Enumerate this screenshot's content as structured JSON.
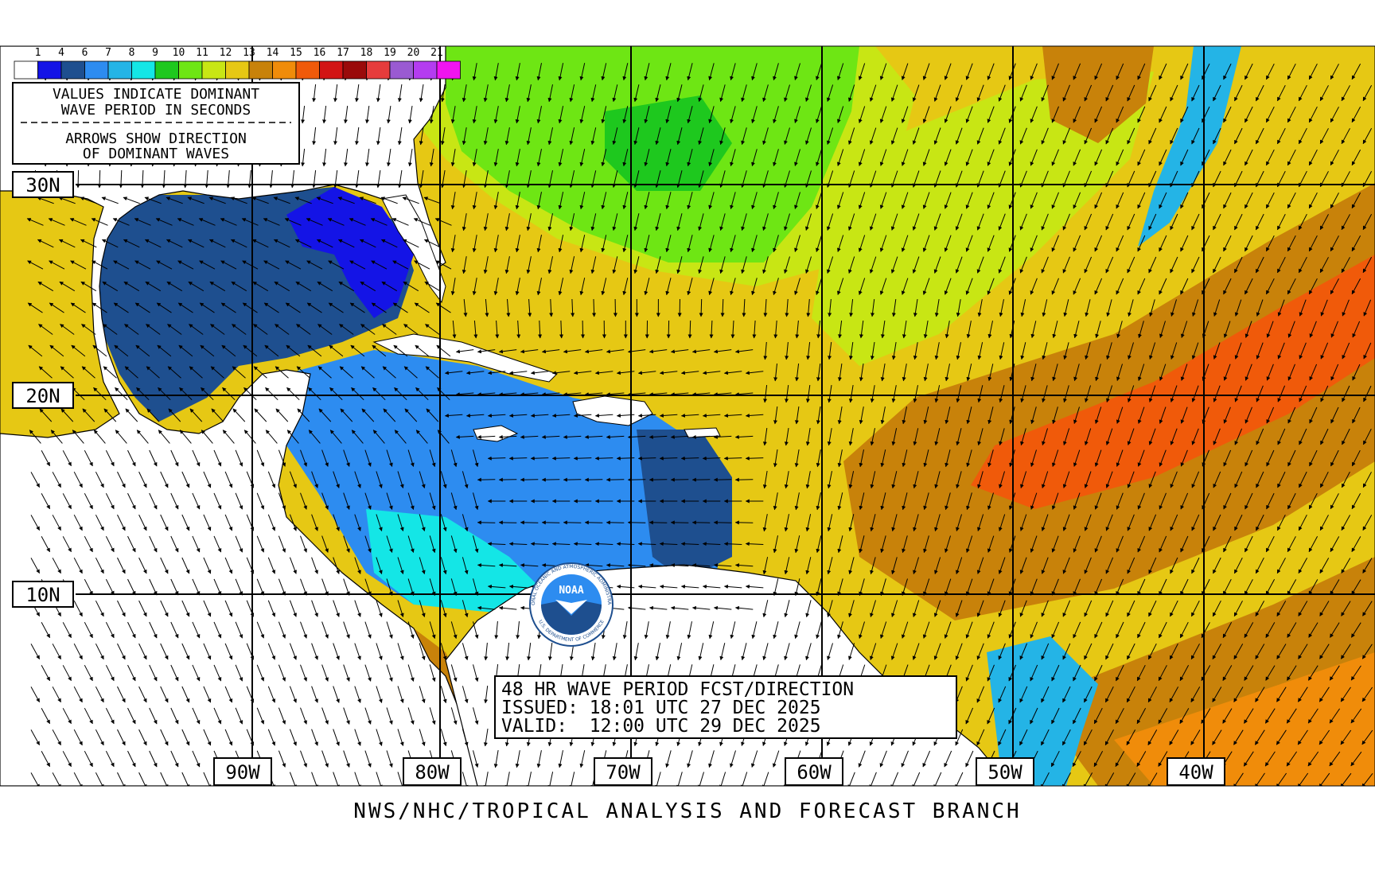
{
  "legend": {
    "values": [
      "1",
      "4",
      "6",
      "7",
      "8",
      "9",
      "10",
      "11",
      "12",
      "13",
      "14",
      "15",
      "16",
      "17",
      "18",
      "19",
      "20",
      "21"
    ],
    "colors": [
      "#ffffff",
      "#1414e6",
      "#1e4f8f",
      "#2d8cf0",
      "#24b4e6",
      "#14e6e6",
      "#1ec81e",
      "#6ee614",
      "#c8e614",
      "#e6c814",
      "#c8820a",
      "#f08c0a",
      "#f05a0a",
      "#d21414",
      "#9a0a0a",
      "#e63c3c",
      "#9a5ad2",
      "#b43cf0",
      "#f014f0"
    ],
    "note_line1": "VALUES INDICATE DOMINANT",
    "note_line2": "WAVE PERIOD IN SECONDS",
    "note_line3": "ARROWS SHOW DIRECTION",
    "note_line4": "OF DOMINANT WAVES"
  },
  "grid": {
    "lat_labels": [
      "30N",
      "20N",
      "10N"
    ],
    "lon_labels": [
      "90W",
      "80W",
      "70W",
      "60W",
      "50W",
      "40W"
    ]
  },
  "info": {
    "title": "48 HR WAVE PERIOD FCST/DIRECTION",
    "issued": "ISSUED: 18:01 UTC 27 DEC 2025",
    "valid": "VALID:  12:00 UTC 29 DEC 2025"
  },
  "logo": {
    "text": "NOAA",
    "ring_top": "NATIONAL OCEANIC AND ATMOSPHERIC ADMINISTRATION",
    "ring_bottom": "U.S. DEPARTMENT OF COMMERCE"
  },
  "footer": "NWS/NHC/TROPICAL ANALYSIS AND FORECAST BRANCH",
  "map_colors": {
    "p4": "#1414e6",
    "p6": "#1e4f8f",
    "p7": "#2d8cf0",
    "p8": "#24b4e6",
    "p9": "#14e6e6",
    "p10": "#1ec81e",
    "p11": "#6ee614",
    "p12": "#c8e614",
    "p13": "#e6c814",
    "p14": "#c8820a",
    "p15": "#f08c0a",
    "p16": "#f05a0a",
    "land": "#ffffff"
  }
}
